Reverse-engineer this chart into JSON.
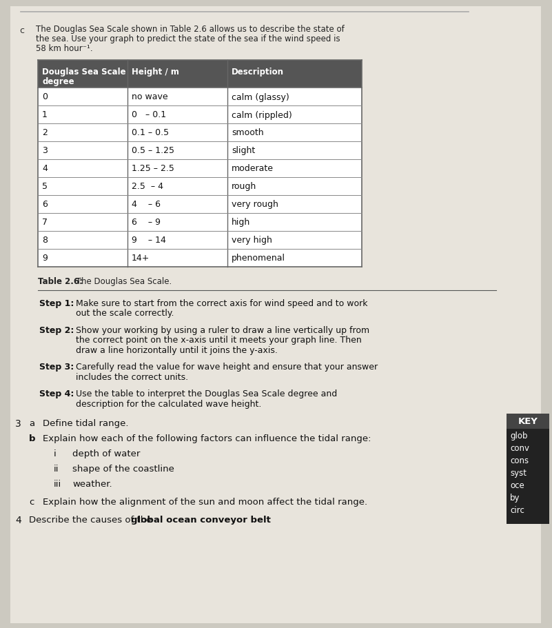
{
  "bg_color": "#ccc9c0",
  "page_bg": "#e8e4dc",
  "table_header_bg": "#555555",
  "table_border": "#999999",
  "key_bg": "#222222",
  "intro_c": "c",
  "intro_text_line1": "The Douglas Sea Scale shown in Table 2.6 allows us to describe the state of",
  "intro_text_line2": "the sea. Use your graph to predict the state of the sea if the wind speed is",
  "intro_text_line3": "58 km hour⁻¹.",
  "table_caption_bold": "Table 2.6:",
  "table_caption_normal": " The Douglas Sea Scale.",
  "table_headers": [
    "Douglas Sea Scale\ndegree",
    "Height / m",
    "Description"
  ],
  "table_rows": [
    [
      "0",
      "no wave",
      "calm (glassy)"
    ],
    [
      "1",
      "0   – 0.1",
      "calm (rippled)"
    ],
    [
      "2",
      "0.1 – 0.5",
      "smooth"
    ],
    [
      "3",
      "0.5 – 1.25",
      "slight"
    ],
    [
      "4",
      "1.25 – 2.5",
      "moderate"
    ],
    [
      "5",
      "2.5  – 4",
      "rough"
    ],
    [
      "6",
      "4    – 6",
      "very rough"
    ],
    [
      "7",
      "6    – 9",
      "high"
    ],
    [
      "8",
      "9    – 14",
      "very high"
    ],
    [
      "9",
      "14+",
      "phenomenal"
    ]
  ],
  "steps": [
    [
      "Step 1:",
      "Make sure to start from the correct axis for wind speed and to work\nout the scale correctly."
    ],
    [
      "Step 2:",
      "Show your working by using a ruler to draw a line vertically up from\nthe correct point on the x-axis until it meets your graph line. Then\ndraw a line horizontally until it joins the y-axis."
    ],
    [
      "Step 3:",
      "Carefully read the value for wave height and ensure that your answer\nincludes the correct units."
    ],
    [
      "Step 4:",
      "Use the table to interpret the Douglas Sea Scale degree and\ndescription for the calculated wave height."
    ]
  ],
  "s3_num": "3",
  "s3a_lbl": "a",
  "s3a_txt": "Define tidal range.",
  "s3b_lbl": "b",
  "s3b_txt": "Explain how each of the following factors can influence the tidal range:",
  "s3b_items": [
    [
      "i",
      "depth of water"
    ],
    [
      "ii",
      "shape of the coastline"
    ],
    [
      "iii",
      "weather."
    ]
  ],
  "s3c_lbl": "c",
  "s3c_txt": "Explain how the alignment of the sun and moon affect the tidal range.",
  "s4_num": "4",
  "s4_pre": "Describe the causes of the ",
  "s4_bold": "global ocean conveyor belt",
  "s4_post": ".",
  "key_title": "KEY",
  "key_lines": [
    "glob",
    "conv",
    "cons",
    "syst",
    "oce",
    "by",
    "circ"
  ]
}
